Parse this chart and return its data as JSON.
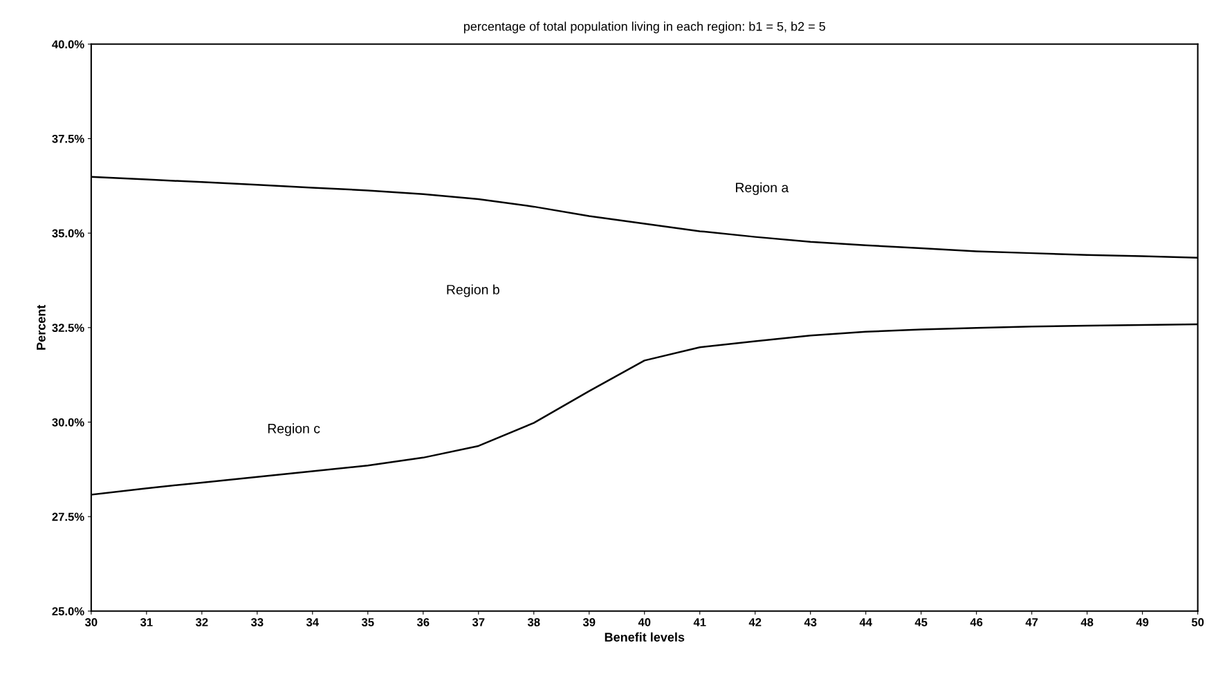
{
  "chart_data": {
    "type": "line",
    "title": "percentage of total population living in each region: b1 = 5, b2 = 5",
    "xlabel": "Benefit levels",
    "ylabel": "Percent",
    "x": [
      30,
      31,
      32,
      33,
      34,
      35,
      36,
      37,
      38,
      39,
      40,
      41,
      42,
      43,
      44,
      45,
      46,
      47,
      48,
      49,
      50
    ],
    "series": [
      {
        "color": "#000000",
        "values": [
          36.49,
          36.42,
          36.35,
          36.28,
          36.2,
          36.13,
          36.03,
          35.9,
          35.7,
          35.45,
          35.25,
          35.05,
          34.9,
          34.77,
          34.68,
          34.6,
          34.52,
          34.47,
          34.42,
          34.39,
          34.35
        ]
      },
      {
        "color": "#000000",
        "values": [
          28.08,
          28.25,
          28.4,
          28.55,
          28.7,
          28.85,
          29.06,
          29.37,
          29.98,
          30.82,
          31.63,
          31.98,
          32.14,
          32.29,
          32.39,
          32.45,
          32.49,
          32.53,
          32.55,
          32.57,
          32.59
        ]
      }
    ],
    "annotations": [
      "Region a",
      "Region b",
      "Region c"
    ],
    "xlim": [
      30,
      50
    ],
    "xticks": [
      30,
      31,
      32,
      33,
      34,
      35,
      36,
      37,
      38,
      39,
      40,
      41,
      42,
      43,
      44,
      45,
      46,
      47,
      48,
      49,
      50
    ],
    "ylim": [
      25,
      40
    ],
    "yticks": [
      {
        "value": 25,
        "label": "25.0%"
      },
      {
        "value": 27.5,
        "label": "27.5%"
      },
      {
        "value": 30,
        "label": "30.0%"
      },
      {
        "value": 32.5,
        "label": "32.5%"
      },
      {
        "value": 35,
        "label": "35.0%"
      },
      {
        "value": 37.5,
        "label": "37.5%"
      },
      {
        "value": 40,
        "label": "40.0%"
      }
    ],
    "grid": false,
    "marker": "none",
    "line_style": "solid"
  }
}
